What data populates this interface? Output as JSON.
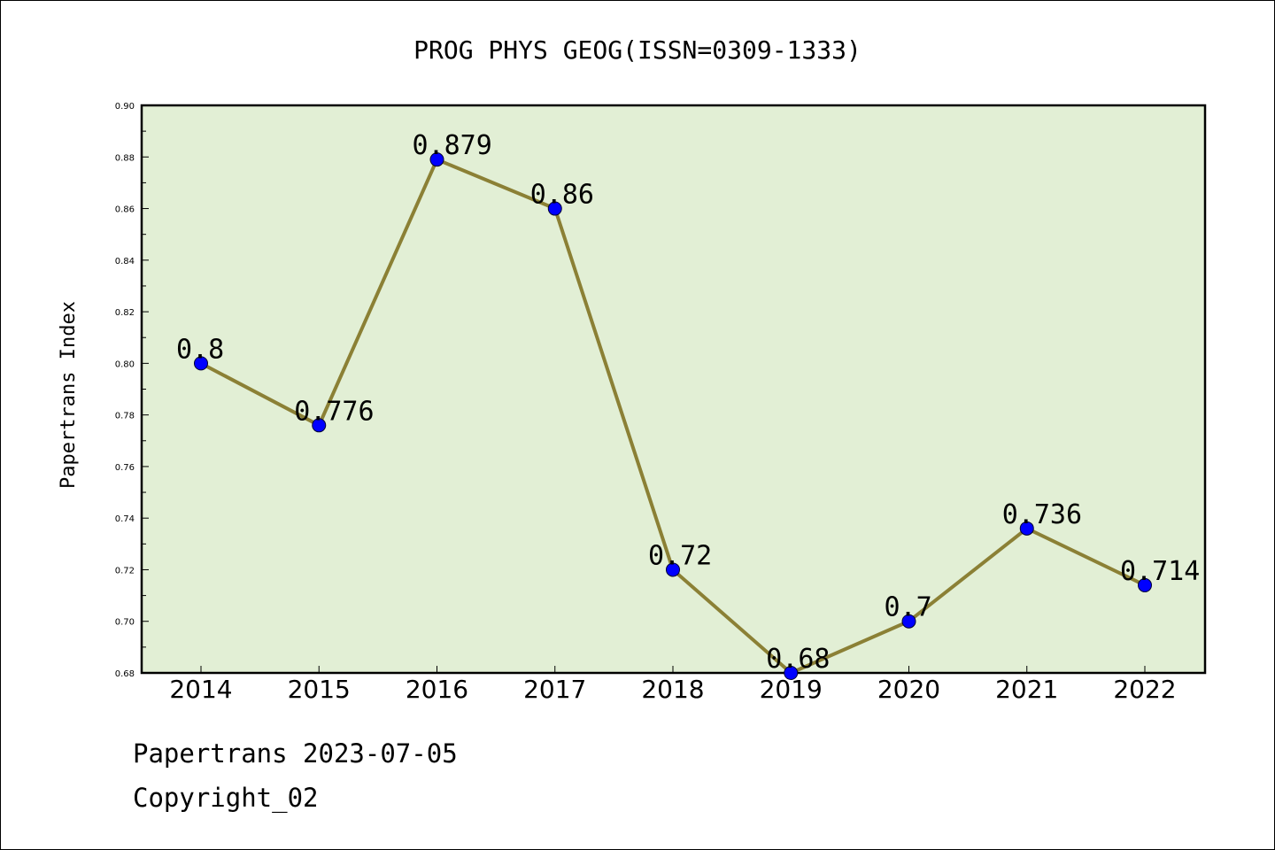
{
  "chart_data": {
    "type": "line",
    "title": "PROG PHYS GEOG(ISSN=0309-1333)",
    "xlabel": "",
    "ylabel": "Papertrans Index",
    "categories": [
      "2014",
      "2015",
      "2016",
      "2017",
      "2018",
      "2019",
      "2020",
      "2021",
      "2022"
    ],
    "values": [
      0.8,
      0.776,
      0.879,
      0.86,
      0.72,
      0.68,
      0.7,
      0.736,
      0.714
    ],
    "data_labels": [
      "0.8",
      "0.776",
      "0.879",
      "0.86",
      "0.72",
      "0.68",
      "0.7",
      "0.736",
      "0.714"
    ],
    "ylim": [
      0.68,
      0.9
    ],
    "yticks": [
      "0.68",
      "0.70",
      "0.72",
      "0.74",
      "0.76",
      "0.78",
      "0.80",
      "0.82",
      "0.84",
      "0.86",
      "0.88",
      "0.90"
    ],
    "grid": false,
    "legend": "none",
    "colors": {
      "plot_background": "#e2efd5",
      "line": "#8b8035",
      "marker": "#0000ff"
    }
  },
  "footer": {
    "line1": "Papertrans 2023-07-05",
    "line2": "Copyright_02"
  }
}
